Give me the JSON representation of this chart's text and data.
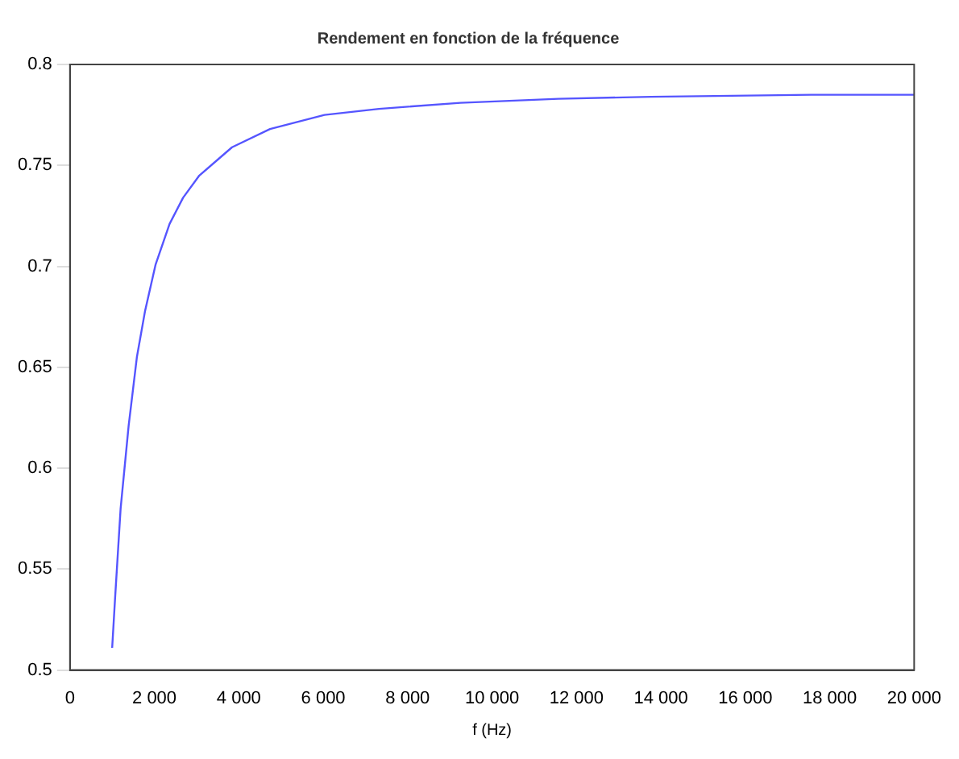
{
  "chart_data": {
    "type": "line",
    "title": "Rendement en fonction de la fréquence",
    "xlabel": "f (Hz)",
    "x": [
      1000,
      1070,
      1200,
      1390,
      1585,
      1780,
      2030,
      2360,
      2680,
      3065,
      3840,
      4740,
      6030,
      7320,
      9250,
      11570,
      13760,
      17560,
      20000
    ],
    "series": [
      {
        "color": "#5555ff",
        "values": [
          0.511,
          0.536,
          0.58,
          0.621,
          0.655,
          0.678,
          0.701,
          0.721,
          0.734,
          0.745,
          0.759,
          0.768,
          0.775,
          0.778,
          0.781,
          0.783,
          0.784,
          0.785,
          0.785
        ]
      }
    ],
    "xlim": [
      0,
      20000
    ],
    "xticks": [
      {
        "value": 0,
        "label": "0"
      },
      {
        "value": 2000,
        "label": "2 000"
      },
      {
        "value": 4000,
        "label": "4 000"
      },
      {
        "value": 6000,
        "label": "6 000"
      },
      {
        "value": 8000,
        "label": "8 000"
      },
      {
        "value": 10000,
        "label": "10 000"
      },
      {
        "value": 12000,
        "label": "12 000"
      },
      {
        "value": 14000,
        "label": "14 000"
      },
      {
        "value": 16000,
        "label": "16 000"
      },
      {
        "value": 18000,
        "label": "18 000"
      },
      {
        "value": 20000,
        "label": "20 000"
      }
    ],
    "ylim": [
      0.5,
      0.8
    ],
    "yticks": [
      0.5,
      0.55,
      0.6,
      0.65,
      0.7,
      0.75,
      0.8
    ],
    "grid": false,
    "legend": false
  }
}
